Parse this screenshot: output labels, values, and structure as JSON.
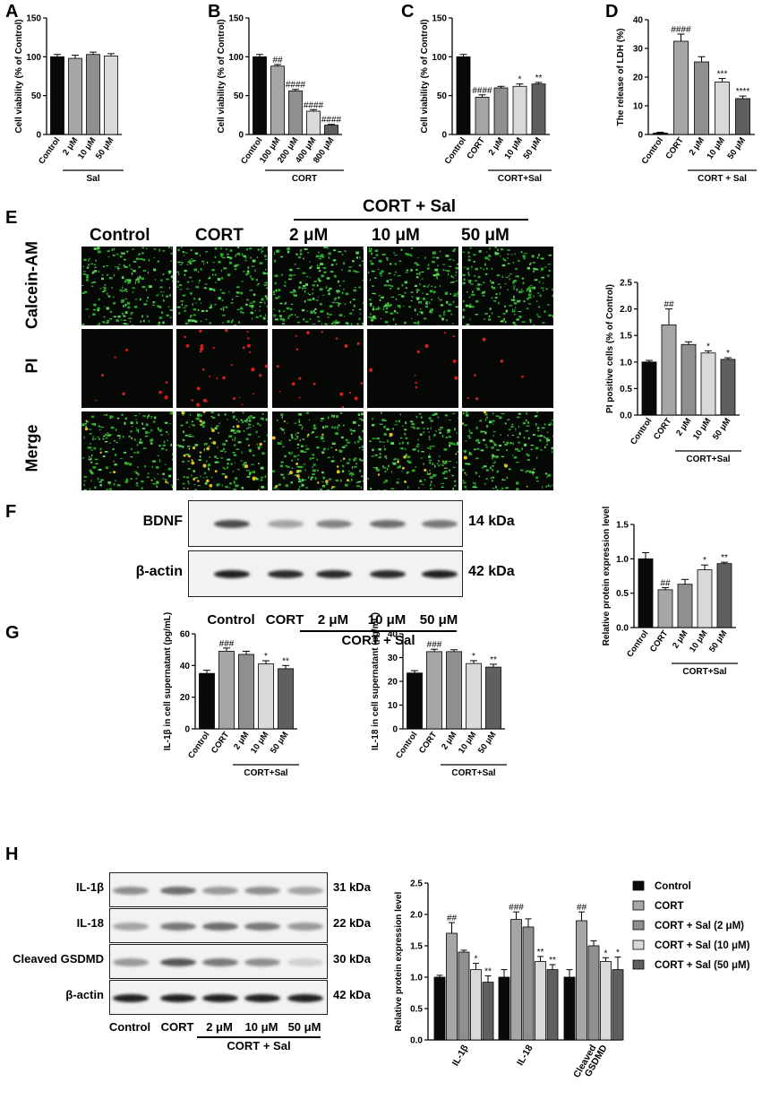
{
  "panels": {
    "A": "A",
    "B": "B",
    "C": "C",
    "D": "D",
    "E": "E",
    "F": "F",
    "G": "G",
    "H": "H"
  },
  "colors": {
    "black": "#0a0a0a",
    "grey1": "#a6a6a6",
    "grey2": "#8f8f8f",
    "grey3": "#d9d9d9",
    "grey4": "#5f5f5f",
    "green": "#2fa52f",
    "red": "#d02020"
  },
  "charts": {
    "A": {
      "type": "bar",
      "ylabel": "Cell viability (% of Control)",
      "ylim": [
        0,
        150
      ],
      "yticks": [
        0,
        50,
        100,
        150
      ],
      "categories": [
        "Control",
        "2 μM",
        "10 μM",
        "50 μM"
      ],
      "values": [
        100,
        98,
        103,
        101
      ],
      "errors": [
        3,
        4,
        3,
        3
      ],
      "colors": [
        "black",
        "grey1",
        "grey2",
        "grey3"
      ],
      "sig": [
        "",
        "",
        "",
        ""
      ],
      "groups": [
        {
          "label": "Sal",
          "from": 1,
          "to": 3
        }
      ]
    },
    "B": {
      "type": "bar",
      "ylabel": "Cell viability (% of Control)",
      "ylim": [
        0,
        150
      ],
      "yticks": [
        0,
        50,
        100,
        150
      ],
      "categories": [
        "Control",
        "100 μM",
        "200 μM",
        "400 μM",
        "800 μM"
      ],
      "values": [
        100,
        88,
        56,
        30,
        12
      ],
      "errors": [
        3,
        2,
        2,
        2,
        1
      ],
      "colors": [
        "black",
        "grey1",
        "grey2",
        "grey3",
        "grey4"
      ],
      "sig": [
        "",
        "##",
        "####",
        "####",
        "####"
      ],
      "groups": [
        {
          "label": "CORT",
          "from": 1,
          "to": 4
        }
      ]
    },
    "C": {
      "type": "bar",
      "ylabel": "Cell viability (% of Control)",
      "ylim": [
        0,
        150
      ],
      "yticks": [
        0,
        50,
        100,
        150
      ],
      "categories": [
        "Control",
        "CORT",
        "2 μM",
        "10 μM",
        "50 μM"
      ],
      "values": [
        100,
        48,
        60,
        62,
        65
      ],
      "errors": [
        3,
        3,
        2,
        3,
        2
      ],
      "colors": [
        "black",
        "grey1",
        "grey2",
        "grey3",
        "grey4"
      ],
      "sig": [
        "",
        "####",
        "",
        "*",
        "**"
      ],
      "groups": [
        {
          "label": "CORT+Sal",
          "from": 2,
          "to": 4
        }
      ]
    },
    "D": {
      "type": "bar",
      "ylabel": "The release of LDH (%)",
      "ylim": [
        0,
        40
      ],
      "yticks": [
        0,
        10,
        20,
        30,
        40
      ],
      "categories": [
        "Control",
        "CORT",
        "2 μM",
        "10 μM",
        "50 μM"
      ],
      "values": [
        0.5,
        32.5,
        25.3,
        18.3,
        12.5
      ],
      "errors": [
        0.3,
        2.5,
        1.8,
        1.2,
        0.9
      ],
      "colors": [
        "black",
        "grey1",
        "grey2",
        "grey3",
        "grey4"
      ],
      "sig": [
        "",
        "####",
        "",
        "***",
        "****"
      ],
      "groups": [
        {
          "label": "CORT + Sal",
          "from": 2,
          "to": 4
        }
      ]
    },
    "E": {
      "type": "bar",
      "ylabel": "PI positive cells (% of Control)",
      "ylim": [
        0,
        2.5
      ],
      "yticks": [
        0.0,
        0.5,
        1.0,
        1.5,
        2.0,
        2.5
      ],
      "categories": [
        "Control",
        "CORT",
        "2 μM",
        "10 μM",
        "50 μM"
      ],
      "values": [
        1.0,
        1.7,
        1.33,
        1.17,
        1.05
      ],
      "errors": [
        0.03,
        0.3,
        0.05,
        0.04,
        0.03
      ],
      "colors": [
        "black",
        "grey1",
        "grey2",
        "grey3",
        "grey4"
      ],
      "sig": [
        "",
        "##",
        "",
        "*",
        "*"
      ],
      "groups": [
        {
          "label": "CORT+Sal",
          "from": 2,
          "to": 4
        }
      ]
    },
    "F": {
      "type": "bar",
      "ylabel": "Relative protein expression level",
      "ylim": [
        0,
        1.5
      ],
      "yticks": [
        0.0,
        0.5,
        1.0,
        1.5
      ],
      "categories": [
        "Control",
        "CORT",
        "2 μM",
        "10 μM",
        "50 μM"
      ],
      "values": [
        1.0,
        0.55,
        0.63,
        0.84,
        0.93
      ],
      "errors": [
        0.09,
        0.03,
        0.07,
        0.07,
        0.02
      ],
      "colors": [
        "black",
        "grey1",
        "grey2",
        "grey3",
        "grey4"
      ],
      "sig": [
        "",
        "##",
        "",
        "*",
        "**"
      ],
      "groups": [
        {
          "label": "CORT+Sal",
          "from": 2,
          "to": 4
        }
      ]
    },
    "G1": {
      "type": "bar",
      "ylabel": "IL-1β in cell supernatant (pg/mL)",
      "ylim": [
        0,
        60
      ],
      "yticks": [
        0,
        20,
        40,
        60
      ],
      "categories": [
        "Control",
        "CORT",
        "2 μM",
        "10 μM",
        "50 μM"
      ],
      "values": [
        35,
        49,
        47,
        41,
        38
      ],
      "errors": [
        2,
        2,
        2,
        2,
        2
      ],
      "colors": [
        "black",
        "grey1",
        "grey2",
        "grey3",
        "grey4"
      ],
      "sig": [
        "",
        "###",
        "",
        "*",
        "**"
      ],
      "groups": [
        {
          "label": "CORT+Sal",
          "from": 2,
          "to": 4
        }
      ]
    },
    "G2": {
      "type": "bar",
      "ylabel": "IL-18 in cell supernatant (pg/mL)",
      "ylim": [
        0,
        40
      ],
      "yticks": [
        0,
        10,
        20,
        30,
        40
      ],
      "categories": [
        "Control",
        "CORT",
        "2 μM",
        "10 μM",
        "50 μM"
      ],
      "values": [
        23.5,
        32.5,
        32.5,
        27.5,
        26
      ],
      "errors": [
        1,
        1,
        0.8,
        1.2,
        1.2
      ],
      "colors": [
        "black",
        "grey1",
        "grey2",
        "grey3",
        "grey4"
      ],
      "sig": [
        "",
        "###",
        "",
        "*",
        "**"
      ],
      "groups": [
        {
          "label": "CORT+Sal",
          "from": 2,
          "to": 4
        }
      ]
    },
    "H": {
      "type": "grouped-bar",
      "ylabel": "Relative protein expression level",
      "ylim": [
        0,
        2.5
      ],
      "yticks": [
        0.0,
        0.5,
        1.0,
        1.5,
        2.0,
        2.5
      ],
      "categories": [
        "IL-1β",
        "IL-18",
        "Cleaved GSDMD"
      ],
      "series": [
        {
          "name": "Control",
          "color": "black",
          "values": [
            1.0,
            1.0,
            1.0
          ],
          "errors": [
            0.03,
            0.12,
            0.12
          ],
          "sig": [
            "",
            "",
            ""
          ]
        },
        {
          "name": "CORT",
          "color": "grey1",
          "values": [
            1.7,
            1.92,
            1.9
          ],
          "errors": [
            0.17,
            0.12,
            0.14
          ],
          "sig": [
            "##",
            "###",
            "##"
          ]
        },
        {
          "name": "CORT + Sal (2 μM)",
          "color": "grey2",
          "values": [
            1.4,
            1.8,
            1.5
          ],
          "errors": [
            0.03,
            0.13,
            0.08
          ],
          "sig": [
            "",
            "",
            ""
          ]
        },
        {
          "name": "CORT + Sal (10 μM)",
          "color": "grey3",
          "values": [
            1.12,
            1.25,
            1.25
          ],
          "errors": [
            0.1,
            0.08,
            0.06
          ],
          "sig": [
            "*",
            "**",
            "*"
          ]
        },
        {
          "name": "CORT + Sal (50 μM)",
          "color": "grey4",
          "values": [
            0.92,
            1.12,
            1.12
          ],
          "errors": [
            0.1,
            0.08,
            0.2
          ],
          "sig": [
            "**",
            "**",
            "*"
          ]
        }
      ]
    }
  },
  "microscopy": {
    "group_header": "CORT + Sal",
    "columns": [
      "Control",
      "CORT",
      "2 μM",
      "10 μM",
      "50 μM"
    ],
    "rows": [
      "Calcein-AM",
      "PI",
      "Merge"
    ]
  },
  "blotF": {
    "rows": [
      {
        "label": "BDNF",
        "kda": "14 kDa"
      },
      {
        "label": "β-actin",
        "kda": "42 kDa"
      }
    ],
    "lanes": [
      "Control",
      "CORT",
      "2 μM",
      "10 μM",
      "50 μM"
    ],
    "group": "CORT + Sal"
  },
  "blotH": {
    "rows": [
      {
        "label": "IL-1β",
        "kda": "31 kDa"
      },
      {
        "label": "IL-18",
        "kda": "22 kDa"
      },
      {
        "label": "Cleaved GSDMD",
        "kda": "30 kDa"
      },
      {
        "label": "β-actin",
        "kda": "42 kDa"
      }
    ],
    "lanes": [
      "Control",
      "CORT",
      "2 μM",
      "10 μM",
      "50 μM"
    ],
    "group": "CORT + Sal"
  }
}
